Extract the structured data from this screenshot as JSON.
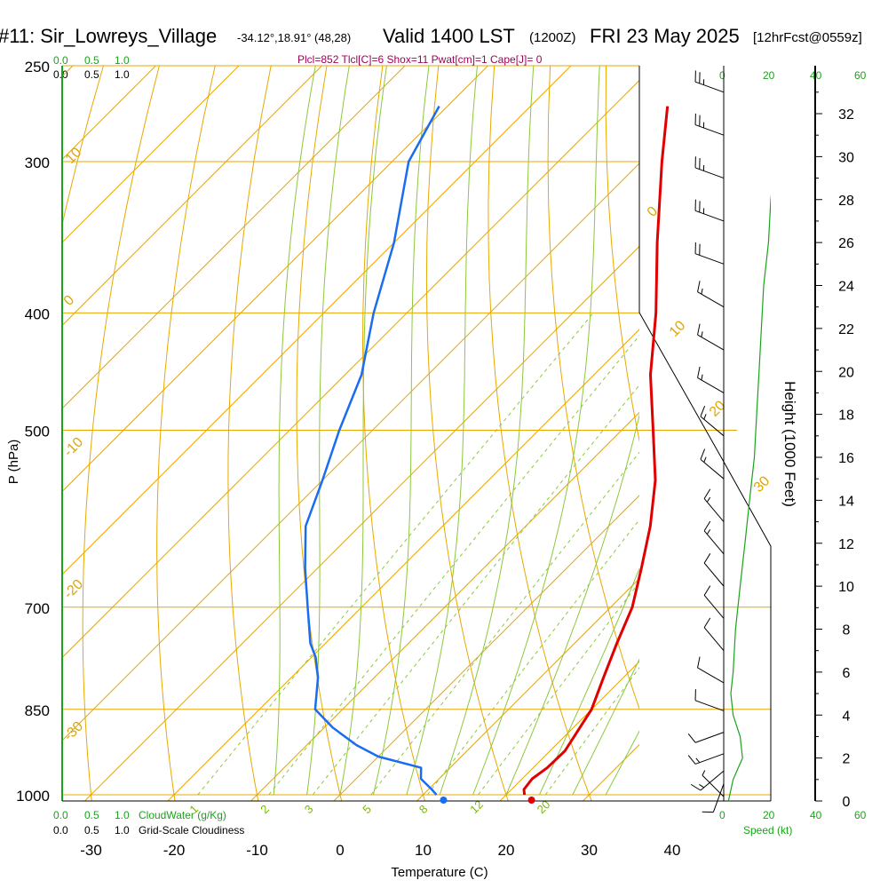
{
  "header": {
    "station": "#11: Sir_Lowreys_Village",
    "coords": "-34.12°,18.91° (48,28)",
    "valid": "Valid 1400 LST",
    "utc": "(1200Z)",
    "date": "FRI 23 May 2025",
    "forecast": "[12hrFcst@0559z]"
  },
  "indices": "Plcl=852 Tlcl[C]=6 Shox=11 Pwat[cm]=1 Cape[J]= 0",
  "cloud_scale": {
    "green": [
      "0.0",
      "0.5",
      "1.0"
    ],
    "black": [
      "0.0",
      "0.5",
      "1.0"
    ],
    "cloudwater_label": "CloudWater (g/Kg)",
    "cloudiness_label": "Grid-Scale Cloudiness"
  },
  "speed_scale": {
    "ticks": [
      "0",
      "20",
      "40",
      "60"
    ],
    "label": "Speed (kt)"
  },
  "colors": {
    "temperature": "#e00000",
    "dewpoint": "#1a6cf0",
    "isotherm": "#e8a800",
    "dry_adiabat": "#e8a800",
    "moist_adiabat": "#8cc83c",
    "mixing_ratio": "#8cc83c",
    "wind_speed": "#1aa31a",
    "indices": "#a0005a"
  },
  "chart_data": {
    "type": "skew-t",
    "xlabel": "Temperature (C)",
    "ylabel": "P (hPa)",
    "y2label": "Height (1000 Feet)",
    "pressure_ticks": [
      250,
      300,
      400,
      500,
      700,
      850,
      1000
    ],
    "temperature_ticks": [
      -30,
      -20,
      -10,
      0,
      10,
      20,
      30,
      40
    ],
    "height_ticks_kft": [
      0,
      2,
      4,
      6,
      8,
      10,
      12,
      14,
      16,
      18,
      20,
      22,
      24,
      26,
      28,
      30,
      32
    ],
    "pressure_range_hpa": [
      250,
      1000
    ],
    "temperature_range_c": [
      -34,
      36
    ],
    "isotherm_labels": [
      "10",
      "0",
      "-10",
      "-20",
      "-30",
      "0",
      "10",
      "20",
      "30"
    ],
    "mixing_ratio_labels": [
      "1",
      "2",
      "3",
      "5",
      "8",
      "12",
      "20"
    ],
    "series": [
      {
        "name": "Temperature",
        "points": [
          {
            "p": 1000,
            "t": 22.2
          },
          {
            "p": 990,
            "t": 21.5
          },
          {
            "p": 970,
            "t": 21.2
          },
          {
            "p": 950,
            "t": 21.7
          },
          {
            "p": 920,
            "t": 21.8
          },
          {
            "p": 850,
            "t": 20.0
          },
          {
            "p": 800,
            "t": 17.6
          },
          {
            "p": 750,
            "t": 15.1
          },
          {
            "p": 700,
            "t": 12.6
          },
          {
            "p": 650,
            "t": 9.0
          },
          {
            "p": 600,
            "t": 5.0
          },
          {
            "p": 550,
            "t": 0.1
          },
          {
            "p": 500,
            "t": -6.2
          },
          {
            "p": 450,
            "t": -13.2
          },
          {
            "p": 400,
            "t": -20.0
          },
          {
            "p": 350,
            "t": -28.3
          },
          {
            "p": 300,
            "t": -37.5
          },
          {
            "p": 270,
            "t": -43.5
          }
        ]
      },
      {
        "name": "Dewpoint",
        "points": [
          {
            "p": 1000,
            "t": 11.6
          },
          {
            "p": 990,
            "t": 10.4
          },
          {
            "p": 970,
            "t": 7.8
          },
          {
            "p": 950,
            "t": 6.5
          },
          {
            "p": 930,
            "t": 0.0
          },
          {
            "p": 910,
            "t": -4.0
          },
          {
            "p": 880,
            "t": -9.0
          },
          {
            "p": 850,
            "t": -13.3
          },
          {
            "p": 800,
            "t": -16.8
          },
          {
            "p": 770,
            "t": -19.5
          },
          {
            "p": 750,
            "t": -21.8
          },
          {
            "p": 700,
            "t": -26.5
          },
          {
            "p": 650,
            "t": -31.5
          },
          {
            "p": 600,
            "t": -36.5
          },
          {
            "p": 550,
            "t": -40.0
          },
          {
            "p": 500,
            "t": -44.0
          },
          {
            "p": 450,
            "t": -48.0
          },
          {
            "p": 400,
            "t": -54.0
          },
          {
            "p": 350,
            "t": -60.0
          },
          {
            "p": 300,
            "t": -68.0
          },
          {
            "p": 270,
            "t": -71.0
          }
        ]
      }
    ],
    "wind_speed_profile_kt": [
      {
        "height_kft": 0,
        "speed": 2
      },
      {
        "height_kft": 1,
        "speed": 4
      },
      {
        "height_kft": 2,
        "speed": 8
      },
      {
        "height_kft": 3,
        "speed": 7
      },
      {
        "height_kft": 4,
        "speed": 4
      },
      {
        "height_kft": 5,
        "speed": 3
      },
      {
        "height_kft": 6,
        "speed": 4
      },
      {
        "height_kft": 8,
        "speed": 5
      },
      {
        "height_kft": 10,
        "speed": 7
      },
      {
        "height_kft": 12,
        "speed": 9
      },
      {
        "height_kft": 14,
        "speed": 11
      },
      {
        "height_kft": 16,
        "speed": 13
      },
      {
        "height_kft": 18,
        "speed": 14
      },
      {
        "height_kft": 20,
        "speed": 15
      },
      {
        "height_kft": 22,
        "speed": 16
      },
      {
        "height_kft": 24,
        "speed": 17
      },
      {
        "height_kft": 26,
        "speed": 19
      },
      {
        "height_kft": 28,
        "speed": 20
      },
      {
        "height_kft": 30,
        "speed": 22
      },
      {
        "height_kft": 32,
        "speed": 24
      },
      {
        "height_kft": 33,
        "speed": 25
      }
    ],
    "wind_barbs": [
      {
        "height_kft": 0.2,
        "speed_kt": 5,
        "dir_deg": 315
      },
      {
        "height_kft": 0.8,
        "speed_kt": 10,
        "dir_deg": 200
      },
      {
        "height_kft": 1.4,
        "speed_kt": 15,
        "dir_deg": 230
      },
      {
        "height_kft": 2.2,
        "speed_kt": 15,
        "dir_deg": 250
      },
      {
        "height_kft": 3.2,
        "speed_kt": 10,
        "dir_deg": 250
      },
      {
        "height_kft": 4.2,
        "speed_kt": 10,
        "dir_deg": 290
      },
      {
        "height_kft": 5.5,
        "speed_kt": 10,
        "dir_deg": 300
      },
      {
        "height_kft": 7.0,
        "speed_kt": 10,
        "dir_deg": 320
      },
      {
        "height_kft": 8.5,
        "speed_kt": 10,
        "dir_deg": 320
      },
      {
        "height_kft": 10.0,
        "speed_kt": 10,
        "dir_deg": 320
      },
      {
        "height_kft": 11.5,
        "speed_kt": 15,
        "dir_deg": 320
      },
      {
        "height_kft": 13.0,
        "speed_kt": 15,
        "dir_deg": 320
      },
      {
        "height_kft": 15.0,
        "speed_kt": 15,
        "dir_deg": 310
      },
      {
        "height_kft": 17.0,
        "speed_kt": 15,
        "dir_deg": 310
      },
      {
        "height_kft": 19.0,
        "speed_kt": 15,
        "dir_deg": 300
      },
      {
        "height_kft": 21.0,
        "speed_kt": 15,
        "dir_deg": 300
      },
      {
        "height_kft": 23.0,
        "speed_kt": 15,
        "dir_deg": 300
      },
      {
        "height_kft": 25.0,
        "speed_kt": 20,
        "dir_deg": 290
      },
      {
        "height_kft": 27.0,
        "speed_kt": 25,
        "dir_deg": 290
      },
      {
        "height_kft": 29.0,
        "speed_kt": 25,
        "dir_deg": 290
      },
      {
        "height_kft": 31.0,
        "speed_kt": 25,
        "dir_deg": 290
      },
      {
        "height_kft": 33.0,
        "speed_kt": 25,
        "dir_deg": 290
      }
    ]
  }
}
